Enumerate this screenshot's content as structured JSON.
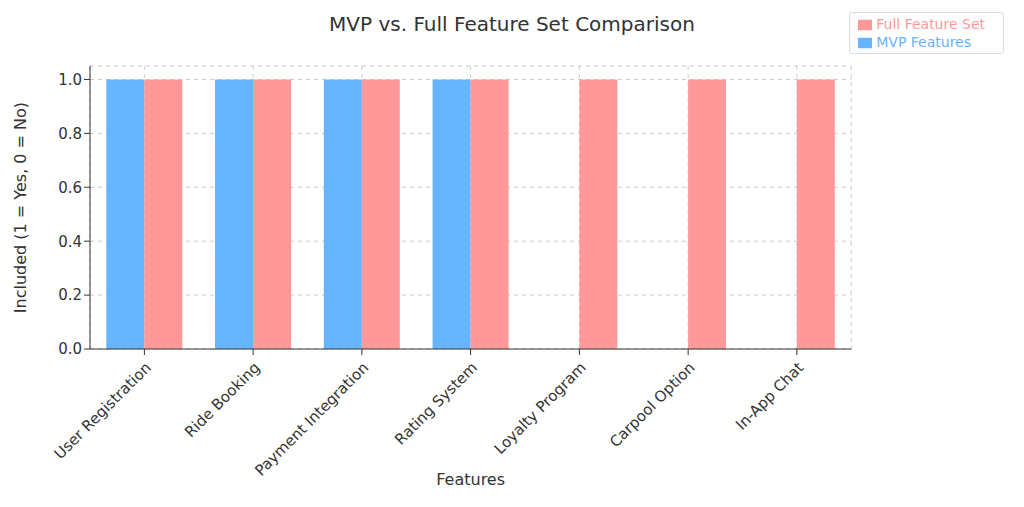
{
  "chart_data": {
    "type": "bar",
    "title": "MVP vs. Full Feature Set Comparison",
    "x_label": "Features",
    "y_label": "Included (1 = Yes, 0 = No)",
    "categories": [
      "User Registration",
      "Ride Booking",
      "Payment Integration",
      "Rating System",
      "Loyalty Program",
      "Carpool Option",
      "In-App Chat"
    ],
    "series": [
      {
        "name": "MVP Features",
        "color": "#66b3ff",
        "values": [
          1,
          1,
          1,
          1,
          0,
          0,
          0
        ]
      },
      {
        "name": "Full Feature Set",
        "color": "#ff9999",
        "values": [
          1,
          1,
          1,
          1,
          1,
          1,
          1
        ]
      }
    ],
    "ylim": [
      0,
      1.05
    ],
    "yticks": [
      {
        "value": 0,
        "label": "0.0"
      },
      0.2,
      0.4,
      0.6,
      0.8,
      {
        "value": 1,
        "label": "1.0"
      }
    ],
    "grid": true,
    "legend": "upper right"
  }
}
